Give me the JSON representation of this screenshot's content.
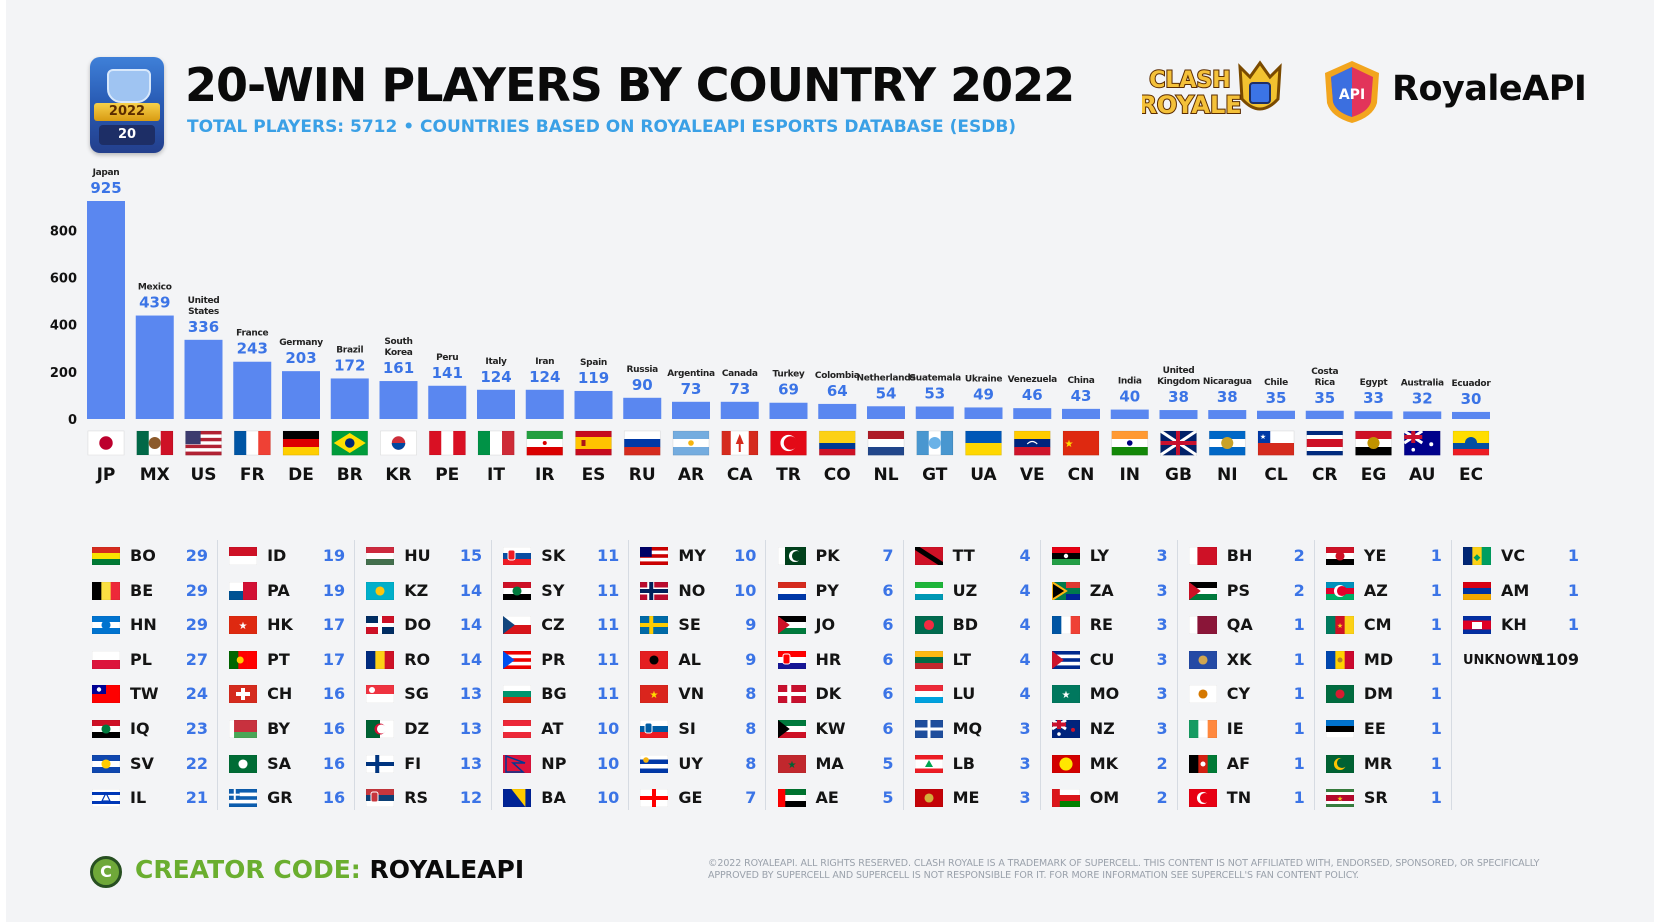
{
  "header": {
    "badge_year": "2022",
    "badge_number": "20",
    "title": "20-WIN PLAYERS BY COUNTRY 2022",
    "subtitle": "TOTAL PLAYERS: 5712 • COUNTRIES BASED ON ROYALEAPI ESPORTS DATABASE (ESDB)",
    "logo_clash_text": "CLASH ROYALE",
    "logo_api_mark": "API",
    "logo_api_text": "RoyaleAPI"
  },
  "colors": {
    "bar": "#5a87f0",
    "value_label": "#3b74e6",
    "subtitle": "#3aa0e6",
    "background": "#f3f4f6",
    "creator_label": "#6aae2f"
  },
  "chart_data": {
    "type": "bar",
    "title": "20-WIN PLAYERS BY COUNTRY 2022",
    "xlabel": "",
    "ylabel": "",
    "ylim": [
      0,
      925
    ],
    "yticks": [
      0,
      200,
      400,
      600,
      800
    ],
    "grid": false,
    "categories": [
      "JP",
      "MX",
      "US",
      "FR",
      "DE",
      "BR",
      "KR",
      "PE",
      "IT",
      "IR",
      "ES",
      "RU",
      "AR",
      "CA",
      "TR",
      "CO",
      "NL",
      "GT",
      "UA",
      "VE",
      "CN",
      "IN",
      "GB",
      "NI",
      "CL",
      "CR",
      "EG",
      "AU",
      "EC"
    ],
    "country_names": [
      "Japan",
      "Mexico",
      "United States",
      "France",
      "Germany",
      "Brazil",
      "South Korea",
      "Peru",
      "Italy",
      "Iran",
      "Spain",
      "Russia",
      "Argentina",
      "Canada",
      "Turkey",
      "Colombia",
      "Netherlands",
      "Guatemala",
      "Ukraine",
      "Venezuela",
      "China",
      "India",
      "United Kingdom",
      "Nicaragua",
      "Chile",
      "Costa Rica",
      "Egypt",
      "Australia",
      "Ecuador"
    ],
    "values": [
      925,
      439,
      336,
      243,
      203,
      172,
      161,
      141,
      124,
      124,
      119,
      90,
      73,
      73,
      69,
      64,
      54,
      53,
      49,
      46,
      43,
      40,
      38,
      38,
      35,
      35,
      33,
      32,
      30
    ]
  },
  "table": {
    "columns": [
      [
        [
          "BO",
          29
        ],
        [
          "BE",
          29
        ],
        [
          "HN",
          29
        ],
        [
          "PL",
          27
        ],
        [
          "TW",
          24
        ],
        [
          "IQ",
          23
        ],
        [
          "SV",
          22
        ],
        [
          "IL",
          21
        ]
      ],
      [
        [
          "ID",
          19
        ],
        [
          "PA",
          19
        ],
        [
          "HK",
          17
        ],
        [
          "PT",
          17
        ],
        [
          "CH",
          16
        ],
        [
          "BY",
          16
        ],
        [
          "SA",
          16
        ],
        [
          "GR",
          16
        ]
      ],
      [
        [
          "HU",
          15
        ],
        [
          "KZ",
          14
        ],
        [
          "DO",
          14
        ],
        [
          "RO",
          14
        ],
        [
          "SG",
          13
        ],
        [
          "DZ",
          13
        ],
        [
          "FI",
          13
        ],
        [
          "RS",
          12
        ]
      ],
      [
        [
          "SK",
          11
        ],
        [
          "SY",
          11
        ],
        [
          "CZ",
          11
        ],
        [
          "PR",
          11
        ],
        [
          "BG",
          11
        ],
        [
          "AT",
          10
        ],
        [
          "NP",
          10
        ],
        [
          "BA",
          10
        ]
      ],
      [
        [
          "MY",
          10
        ],
        [
          "NO",
          10
        ],
        [
          "SE",
          9
        ],
        [
          "AL",
          9
        ],
        [
          "VN",
          8
        ],
        [
          "SI",
          8
        ],
        [
          "UY",
          8
        ],
        [
          "GE",
          7
        ]
      ],
      [
        [
          "PK",
          7
        ],
        [
          "PY",
          6
        ],
        [
          "JO",
          6
        ],
        [
          "HR",
          6
        ],
        [
          "DK",
          6
        ],
        [
          "KW",
          6
        ],
        [
          "MA",
          5
        ],
        [
          "AE",
          5
        ]
      ],
      [
        [
          "TT",
          4
        ],
        [
          "UZ",
          4
        ],
        [
          "BD",
          4
        ],
        [
          "LT",
          4
        ],
        [
          "LU",
          4
        ],
        [
          "MQ",
          3
        ],
        [
          "LB",
          3
        ],
        [
          "ME",
          3
        ]
      ],
      [
        [
          "LY",
          3
        ],
        [
          "ZA",
          3
        ],
        [
          "RE",
          3
        ],
        [
          "CU",
          3
        ],
        [
          "MO",
          3
        ],
        [
          "NZ",
          3
        ],
        [
          "MK",
          2
        ],
        [
          "OM",
          2
        ]
      ],
      [
        [
          "BH",
          2
        ],
        [
          "PS",
          2
        ],
        [
          "QA",
          1
        ],
        [
          "XK",
          1
        ],
        [
          "CY",
          1
        ],
        [
          "IE",
          1
        ],
        [
          "AF",
          1
        ],
        [
          "TN",
          1
        ]
      ],
      [
        [
          "YE",
          1
        ],
        [
          "AZ",
          1
        ],
        [
          "CM",
          1
        ],
        [
          "MD",
          1
        ],
        [
          "DM",
          1
        ],
        [
          "EE",
          1
        ],
        [
          "MR",
          1
        ],
        [
          "SR",
          1
        ]
      ],
      [
        [
          "VC",
          1
        ],
        [
          "AM",
          1
        ],
        [
          "KH",
          1
        ],
        [
          "UNKNOWN",
          1109
        ]
      ]
    ]
  },
  "footer": {
    "creator_label": "CREATOR CODE:",
    "creator_code": "ROYALEAPI",
    "legal": "©2022 ROYALEAPI. ALL RIGHTS RESERVED. CLASH ROYALE IS A TRADEMARK OF SUPERCELL. THIS CONTENT IS NOT AFFILIATED WITH, ENDORSED, SPONSORED, OR SPECIFICALLY APPROVED BY SUPERCELL AND SUPERCELL IS NOT RESPONSIBLE FOR IT. FOR MORE INFORMATION SEE SUPERCELL'S FAN CONTENT POLICY."
  }
}
